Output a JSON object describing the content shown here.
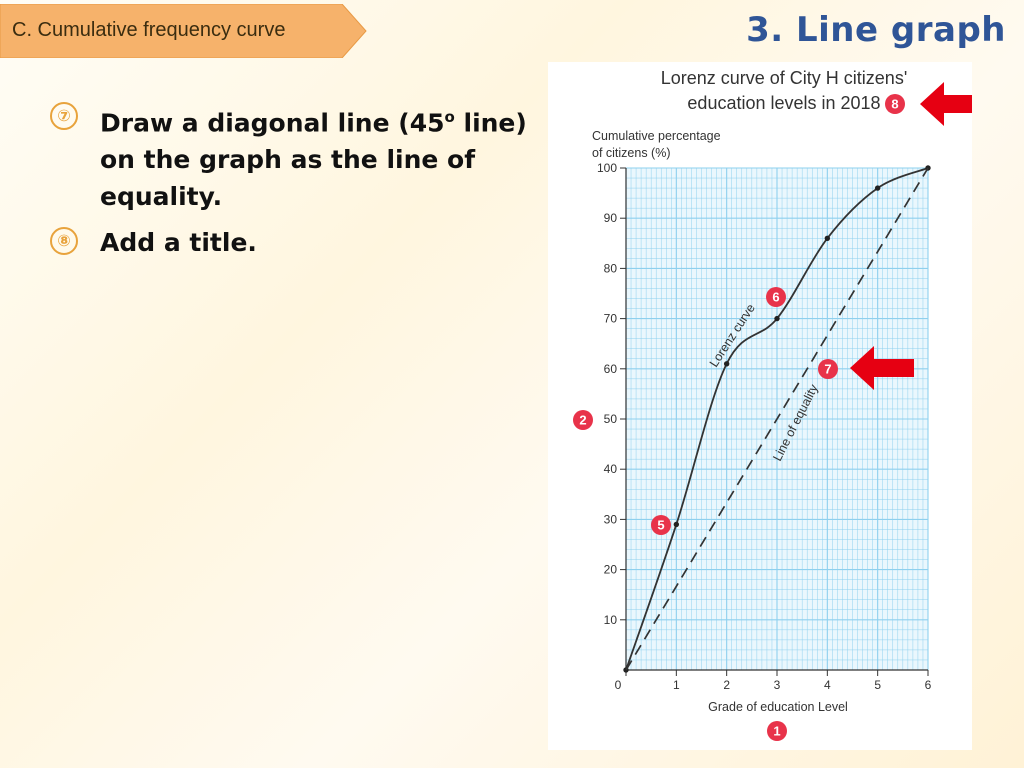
{
  "header": {
    "section_tag": "C. Cumulative frequency curve",
    "page_title": "3. Line graph"
  },
  "steps": [
    {
      "number": "⑦",
      "text_before": "Draw a diagonal line (45",
      "superscript": "o",
      "text_after": " line) on the graph as the line of equality."
    },
    {
      "number": "⑧",
      "text": "Add a title."
    }
  ],
  "colors": {
    "accent_tag": "#f6b26b",
    "title_blue": "#2f5597",
    "grid_blue": "#8ed0ee",
    "marker_red": "#e8334a",
    "arrow_red": "#e60012",
    "step_number": "#e8a33c"
  },
  "callouts": {
    "title": "8",
    "y_axis": "2",
    "x_axis": "1",
    "curve_point": "5",
    "curve_label": "6",
    "equality_line": "7"
  },
  "chart_data": {
    "type": "line",
    "title": "Lorenz curve of City H citizens' education levels in 2018",
    "ylabel": "Cumulative percentage of citizens (%)",
    "xlabel": "Grade of education Level",
    "xlim": [
      0,
      6
    ],
    "ylim": [
      0,
      100
    ],
    "x_ticks": [
      0,
      1,
      2,
      3,
      4,
      5,
      6
    ],
    "y_ticks": [
      10,
      20,
      30,
      40,
      50,
      60,
      70,
      80,
      90,
      100
    ],
    "grid": true,
    "series": [
      {
        "name": "Lorenz curve",
        "style": "solid",
        "x": [
          0,
          1,
          2,
          3,
          4,
          5,
          6
        ],
        "y": [
          0,
          29,
          61,
          70,
          86,
          96,
          100
        ]
      },
      {
        "name": "Line of equality",
        "style": "dashed",
        "x": [
          0,
          6
        ],
        "y": [
          0,
          100
        ]
      }
    ]
  }
}
